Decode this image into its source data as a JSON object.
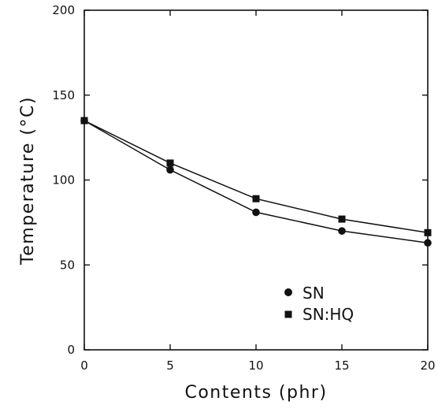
{
  "chart_data": {
    "type": "line",
    "title": "",
    "xlabel": "Contents (phr)",
    "ylabel": "Temperature (°C)",
    "xlim": [
      0,
      20
    ],
    "ylim": [
      0,
      200
    ],
    "x_ticks": [
      0,
      5,
      10,
      15,
      20
    ],
    "y_ticks": [
      0,
      50,
      100,
      150,
      200
    ],
    "grid": false,
    "legend_position": "bottom-right",
    "series": [
      {
        "name": "SN",
        "marker": "circle",
        "x": [
          0,
          5,
          10,
          15,
          20
        ],
        "values": [
          135,
          106,
          81,
          70,
          63
        ]
      },
      {
        "name": "SN:HQ",
        "marker": "square",
        "x": [
          0,
          5,
          10,
          15,
          20
        ],
        "values": [
          135,
          110,
          89,
          77,
          69
        ]
      }
    ],
    "colors": {
      "line": "#111111",
      "marker": "#111111",
      "axis": "#111111",
      "background": "#ffffff"
    }
  }
}
